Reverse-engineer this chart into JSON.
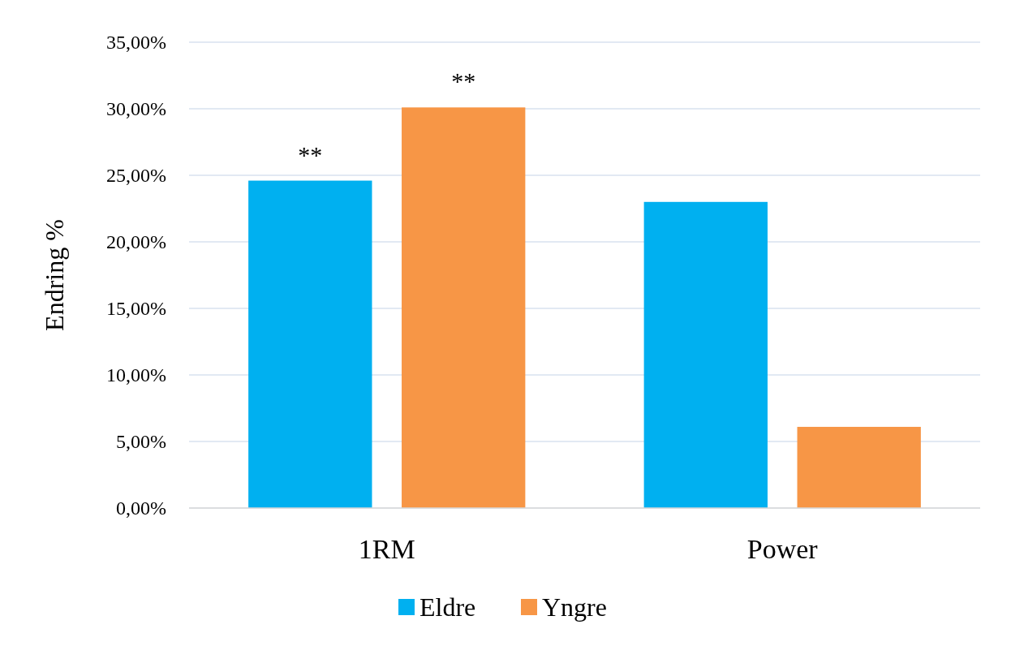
{
  "chart_data": {
    "type": "bar",
    "ylabel": "Endring %",
    "categories": [
      "1RM",
      "Power"
    ],
    "series": [
      {
        "name": "Eldre",
        "color": "#00b0f0",
        "values": [
          24.6,
          23.0
        ]
      },
      {
        "name": "Yngre",
        "color": "#f79646",
        "values": [
          30.1,
          6.1
        ]
      }
    ],
    "ylim": [
      0,
      35
    ],
    "yticks": [
      {
        "value": 0,
        "label": "0,00%"
      },
      {
        "value": 5,
        "label": "5,00%"
      },
      {
        "value": 10,
        "label": "10,00%"
      },
      {
        "value": 15,
        "label": "15,00%"
      },
      {
        "value": 20,
        "label": "20,00%"
      },
      {
        "value": 25,
        "label": "25,00%"
      },
      {
        "value": 30,
        "label": "30,00%"
      },
      {
        "value": 35,
        "label": "35,00%"
      }
    ],
    "grid": "y",
    "legend": "bottom",
    "annotations": [
      "**",
      "**"
    ]
  }
}
